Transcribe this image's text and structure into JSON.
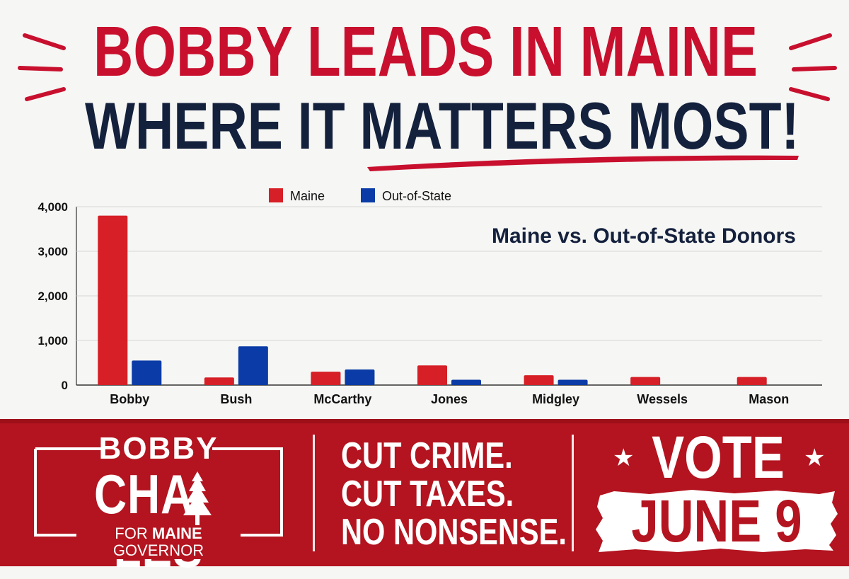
{
  "headline": {
    "line1": "BOBBY LEADS IN MAINE",
    "line2": "WHERE IT MATTERS MOST!"
  },
  "colors": {
    "red": "#c8102e",
    "navy": "#14213d",
    "blue": "#0a3ba6",
    "footer_red": "#b3141f"
  },
  "chart_data": {
    "type": "bar",
    "title": "Maine vs. Out-of-State Donors",
    "categories": [
      "Bobby",
      "Bush",
      "McCarthy",
      "Jones",
      "Midgley",
      "Wessels",
      "Mason"
    ],
    "series": [
      {
        "name": "Maine",
        "color": "#d61f26",
        "values": [
          3800,
          170,
          300,
          440,
          220,
          180,
          180
        ]
      },
      {
        "name": "Out-of-State",
        "color": "#0a3ba6",
        "values": [
          550,
          870,
          350,
          120,
          120,
          0,
          0
        ]
      }
    ],
    "y_ticks": [
      "0",
      "1,000",
      "2,000",
      "3,000",
      "4,000"
    ],
    "ylim": [
      0,
      4000
    ],
    "grid": true,
    "legend_position": "top"
  },
  "footer": {
    "logo_first": "BOBBY",
    "logo_last_1": "CHA",
    "logo_last_2": "LES",
    "logo_sub_1": "FOR ",
    "logo_sub_2": "MAINE",
    "logo_sub_3": " GOVERNOR",
    "logo_icon": "pine-tree-icon",
    "slogan": [
      "CUT CRIME.",
      "CUT TAXES.",
      "NO NONSENSE."
    ],
    "vote_word": "VOTE",
    "vote_date": "JUNE 9",
    "star_icon": "★"
  }
}
